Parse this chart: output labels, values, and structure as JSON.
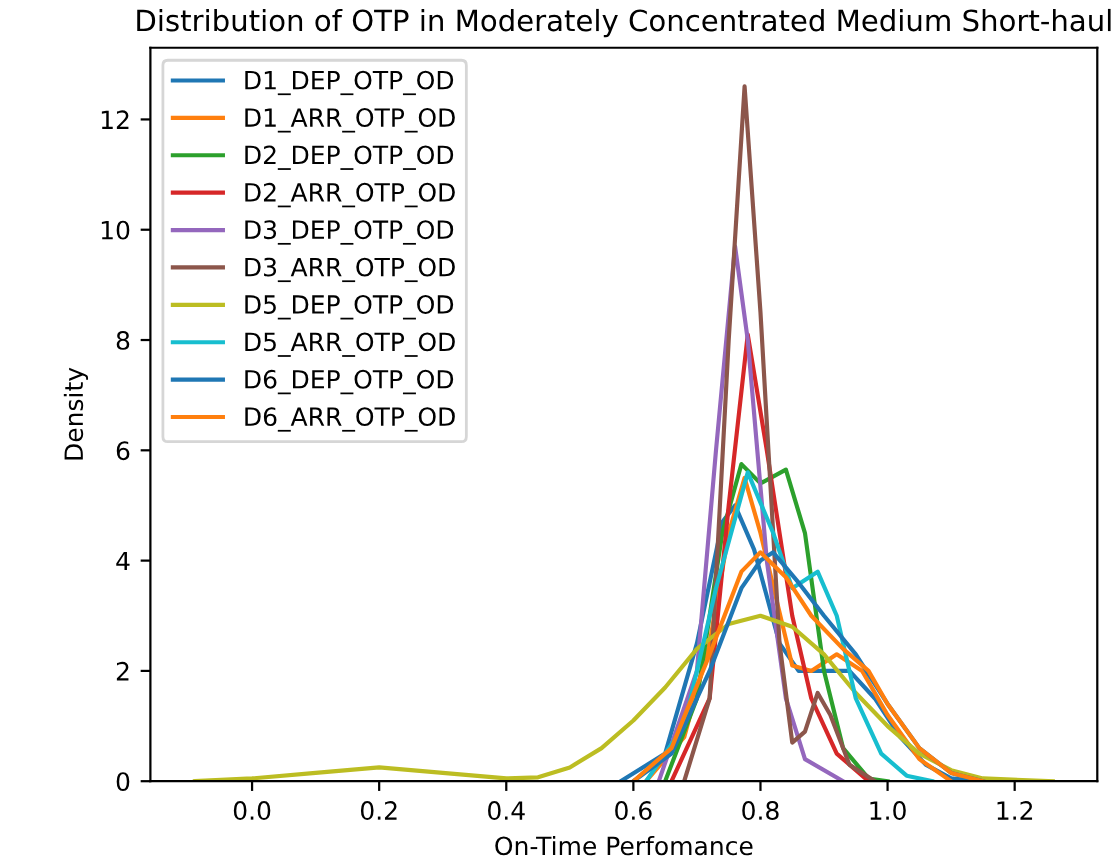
{
  "chart_data": {
    "type": "line",
    "title": "Distribution of OTP in Moderately Concentrated Medium Short-haul",
    "xlabel": "On-Time Perfomance",
    "ylabel": "Density",
    "xlim": [
      -0.16,
      1.33
    ],
    "ylim": [
      0,
      13.3
    ],
    "xticks": [
      {
        "value": 0,
        "label": "0.0"
      },
      0.2,
      0.4,
      0.6,
      0.8,
      {
        "value": 1,
        "label": "1.0"
      },
      1.2
    ],
    "yticks": [
      0,
      2,
      4,
      6,
      8,
      10,
      12
    ],
    "grid": false,
    "legend": "top left",
    "marker": "none",
    "line_style": "solid",
    "series": [
      {
        "name": "D1_DEP_OTP_OD",
        "color": "#1f77b4",
        "x": [
          0.58,
          0.65,
          0.7,
          0.74,
          0.76,
          0.79,
          0.83,
          0.86,
          0.9,
          0.94,
          0.98,
          1.02,
          1.06,
          1.1,
          1.14
        ],
        "values": [
          0,
          0.5,
          2.5,
          4.7,
          5.0,
          4.2,
          2.5,
          2.0,
          2.0,
          2.0,
          1.5,
          0.8,
          0.3,
          0.05,
          0
        ]
      },
      {
        "name": "D1_ARR_OTP_OD",
        "color": "#ff7f0e",
        "x": [
          0.62,
          0.68,
          0.72,
          0.75,
          0.775,
          0.8,
          0.85,
          0.88,
          0.92,
          0.96,
          1.0,
          1.05,
          1.1
        ],
        "values": [
          0,
          0.8,
          2.5,
          4.5,
          5.5,
          4.5,
          2.1,
          2.0,
          2.3,
          2.0,
          1.2,
          0.4,
          0
        ]
      },
      {
        "name": "D2_DEP_OTP_OD",
        "color": "#2ca02c",
        "x": [
          0.65,
          0.7,
          0.74,
          0.77,
          0.8,
          0.84,
          0.87,
          0.9,
          0.93,
          0.97,
          1.0
        ],
        "values": [
          0,
          1.5,
          4.5,
          5.75,
          5.4,
          5.65,
          4.5,
          2.0,
          0.6,
          0.05,
          0
        ]
      },
      {
        "name": "D2_ARR_OTP_OD",
        "color": "#d62728",
        "x": [
          0.66,
          0.72,
          0.75,
          0.78,
          0.81,
          0.85,
          0.88,
          0.92,
          0.97
        ],
        "values": [
          0,
          1.5,
          5.0,
          8.1,
          6.0,
          3.0,
          1.5,
          0.5,
          0
        ]
      },
      {
        "name": "D3_DEP_OTP_OD",
        "color": "#9467bd",
        "x": [
          0.64,
          0.7,
          0.73,
          0.76,
          0.78,
          0.81,
          0.84,
          0.87,
          0.93
        ],
        "values": [
          0,
          2.0,
          6.0,
          9.7,
          8.0,
          4.0,
          1.5,
          0.4,
          0
        ]
      },
      {
        "name": "D3_ARR_OTP_OD",
        "color": "#8c564b",
        "x": [
          0.68,
          0.72,
          0.75,
          0.775,
          0.8,
          0.83,
          0.85,
          0.87,
          0.89,
          0.91,
          0.94,
          0.98
        ],
        "values": [
          0,
          1.5,
          8.0,
          12.6,
          8.5,
          2.5,
          0.7,
          0.9,
          1.6,
          1.2,
          0.3,
          0
        ]
      },
      {
        "name": "D5_DEP_OTP_OD",
        "color": "#bcbd22",
        "x": [
          -0.09,
          0.0,
          0.1,
          0.2,
          0.3,
          0.4,
          0.45,
          0.5,
          0.55,
          0.6,
          0.65,
          0.7,
          0.75,
          0.8,
          0.85,
          0.9,
          0.95,
          1.0,
          1.05,
          1.1,
          1.15,
          1.26
        ],
        "values": [
          0,
          0.05,
          0.15,
          0.25,
          0.15,
          0.05,
          0.07,
          0.25,
          0.6,
          1.1,
          1.7,
          2.4,
          2.85,
          3.0,
          2.8,
          2.3,
          1.6,
          1.0,
          0.5,
          0.2,
          0.05,
          0
        ]
      },
      {
        "name": "D5_ARR_OTP_OD",
        "color": "#17becf",
        "x": [
          0.62,
          0.68,
          0.73,
          0.78,
          0.82,
          0.85,
          0.89,
          0.92,
          0.95,
          0.99,
          1.03,
          1.07
        ],
        "values": [
          0,
          1.0,
          3.5,
          5.6,
          4.5,
          3.5,
          3.8,
          3.0,
          1.5,
          0.5,
          0.1,
          0
        ]
      },
      {
        "name": "D6_DEP_OTP_OD",
        "color": "#1f77b4",
        "x": [
          0.6,
          0.66,
          0.72,
          0.77,
          0.8,
          0.82,
          0.86,
          0.9,
          0.95,
          1.0,
          1.05,
          1.1,
          1.15
        ],
        "values": [
          0,
          0.5,
          2.0,
          3.5,
          4.0,
          4.15,
          3.6,
          3.0,
          2.3,
          1.4,
          0.6,
          0.15,
          0
        ]
      },
      {
        "name": "D6_ARR_OTP_OD",
        "color": "#ff7f0e",
        "x": [
          0.6,
          0.66,
          0.72,
          0.77,
          0.8,
          0.84,
          0.88,
          0.93,
          0.97,
          1.0,
          1.05,
          1.1,
          1.15
        ],
        "values": [
          0,
          0.6,
          2.3,
          3.8,
          4.15,
          3.7,
          3.0,
          2.4,
          2.0,
          1.4,
          0.6,
          0.15,
          0
        ]
      }
    ]
  }
}
